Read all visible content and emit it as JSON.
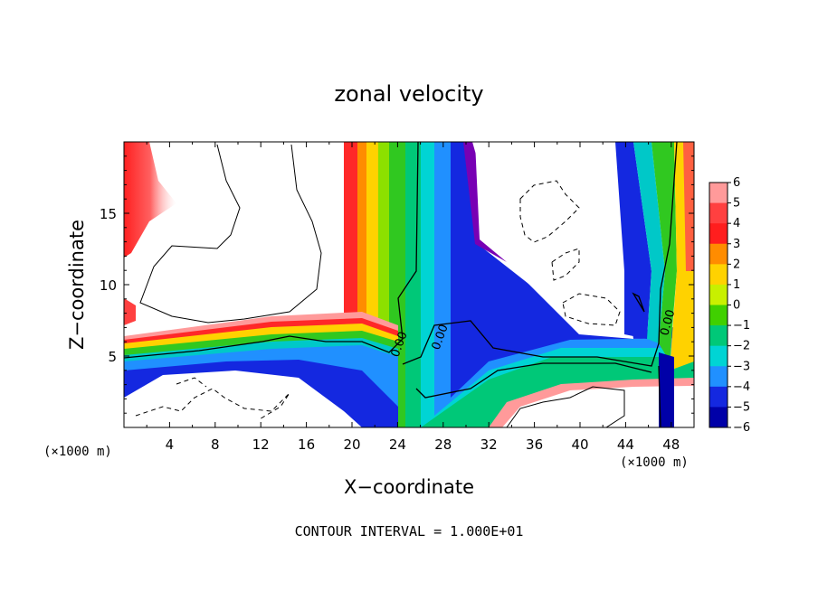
{
  "chart_data": {
    "type": "heatmap",
    "title": "zonal velocity",
    "xlabel": "X−coordinate",
    "ylabel": "Z−coordinate",
    "x_unit_left": "(×1000 m)",
    "x_unit_right": "(×1000 m)",
    "xlim": [
      0,
      50
    ],
    "ylim": [
      0,
      20
    ],
    "x_ticks": [
      4,
      8,
      12,
      16,
      20,
      24,
      28,
      32,
      36,
      40,
      44,
      48
    ],
    "x_tick_labels": [
      "4",
      "8",
      "12",
      "16",
      "20",
      "24",
      "28",
      "32",
      "36",
      "40",
      "44",
      "48"
    ],
    "y_ticks": [
      5,
      10,
      15
    ],
    "y_tick_labels": [
      "5",
      "10",
      "15"
    ],
    "colorbar": {
      "levels": [
        6,
        5,
        4,
        3,
        2,
        1,
        0,
        -1,
        -2,
        -3,
        -4,
        -5,
        -6
      ],
      "labels": [
        "6",
        "5",
        "4",
        "3",
        "2",
        "1",
        "0",
        "−1",
        "−2",
        "−3",
        "−4",
        "−5",
        "−6"
      ],
      "colors": [
        "#ff9a9a",
        "#ff4040",
        "#ff1e1e",
        "#ff8c00",
        "#ffd200",
        "#c8f000",
        "#40d000",
        "#00c878",
        "#00d4d4",
        "#2090ff",
        "#1428e0",
        "#0000a8",
        "#7800b4"
      ]
    },
    "contour_labels": [
      "0.00",
      "0.00",
      "0.00"
    ],
    "contour_interval_text": "CONTOUR INTERVAL = 1.000E+01",
    "grid": false
  }
}
